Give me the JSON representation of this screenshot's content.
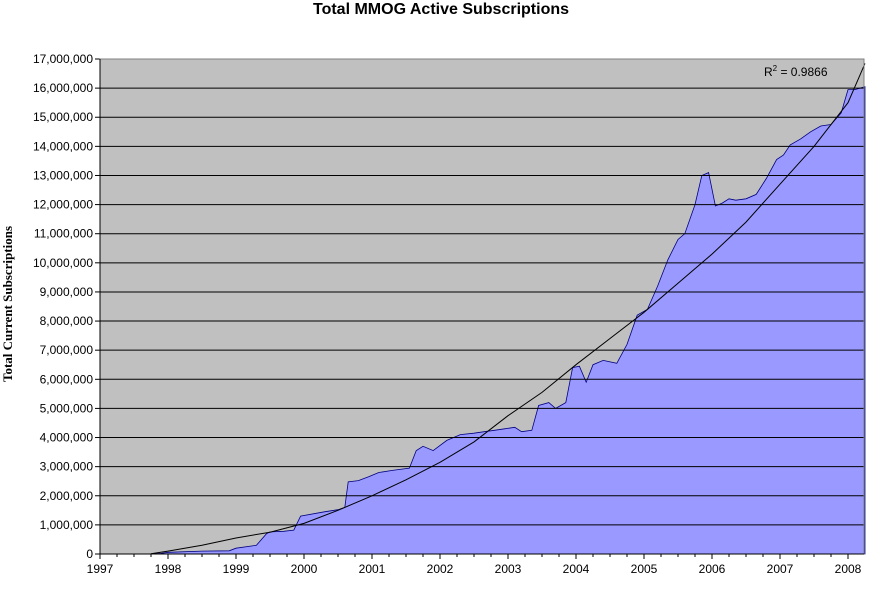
{
  "chart_data": {
    "type": "area",
    "title": "Total MMOG Active Subscriptions",
    "xlabel": "",
    "ylabel": "Total Current Subscriptions",
    "xlim": [
      1997.0,
      2008.25
    ],
    "ylim": [
      0,
      17000000
    ],
    "grid": true,
    "legend": "none",
    "x_tick_labels": [
      "1997",
      "1998",
      "1999",
      "2000",
      "2001",
      "2002",
      "2003",
      "2004",
      "2005",
      "2006",
      "2007",
      "2008"
    ],
    "y_tick_labels": [
      "0",
      "1,000,000",
      "2,000,000",
      "3,000,000",
      "4,000,000",
      "5,000,000",
      "6,000,000",
      "7,000,000",
      "8,000,000",
      "9,000,000",
      "10,000,000",
      "11,000,000",
      "12,000,000",
      "13,000,000",
      "14,000,000",
      "15,000,000",
      "16,000,000",
      "17,000,000"
    ],
    "annotation": {
      "prefix": "R",
      "superscript": "2",
      "suffix": " = 0.9866"
    },
    "series": [
      {
        "type": "area",
        "x": [
          1997.75,
          1997.9,
          1998.0,
          1998.5,
          1998.9,
          1999.0,
          1999.3,
          1999.45,
          1999.5,
          1999.7,
          1999.85,
          1999.95,
          2000.3,
          2000.5,
          2000.6,
          2000.65,
          2000.8,
          2000.95,
          2001.1,
          2001.3,
          2001.55,
          2001.65,
          2001.75,
          2001.9,
          2002.1,
          2002.3,
          2002.5,
          2002.65,
          2002.8,
          2002.95,
          2003.1,
          2003.2,
          2003.35,
          2003.45,
          2003.6,
          2003.7,
          2003.85,
          2003.95,
          2004.05,
          2004.15,
          2004.25,
          2004.4,
          2004.6,
          2004.75,
          2004.9,
          2005.05,
          2005.2,
          2005.35,
          2005.5,
          2005.6,
          2005.75,
          2005.85,
          2005.95,
          2006.05,
          2006.15,
          2006.25,
          2006.35,
          2006.5,
          2006.65,
          2006.8,
          2006.95,
          2007.05,
          2007.15,
          2007.3,
          2007.45,
          2007.6,
          2007.75,
          2007.9,
          2008.0,
          2008.1,
          2008.25
        ],
        "values": [
          0,
          20000,
          60000,
          100000,
          110000,
          200000,
          300000,
          700000,
          760000,
          780000,
          820000,
          1300000,
          1450000,
          1520000,
          1600000,
          2480000,
          2520000,
          2650000,
          2800000,
          2870000,
          2950000,
          3550000,
          3700000,
          3550000,
          3900000,
          4100000,
          4150000,
          4200000,
          4250000,
          4300000,
          4350000,
          4200000,
          4250000,
          5100000,
          5200000,
          5000000,
          5200000,
          6400000,
          6450000,
          5900000,
          6500000,
          6650000,
          6550000,
          7200000,
          8200000,
          8400000,
          9200000,
          10100000,
          10800000,
          11000000,
          12000000,
          13000000,
          13100000,
          11950000,
          12050000,
          12200000,
          12150000,
          12200000,
          12350000,
          12900000,
          13550000,
          13700000,
          14050000,
          14250000,
          14500000,
          14700000,
          14750000,
          15150000,
          15950000,
          15950000,
          16050000
        ]
      },
      {
        "type": "trendline",
        "x": [
          1997.75,
          1998.0,
          1998.5,
          1999.0,
          1999.5,
          2000.0,
          2000.5,
          2001.0,
          2001.5,
          2002.0,
          2002.5,
          2003.0,
          2003.5,
          2004.0,
          2004.5,
          2005.0,
          2005.5,
          2006.0,
          2006.5,
          2007.0,
          2007.5,
          2008.0,
          2008.25
        ],
        "values": [
          10000,
          100000,
          300000,
          550000,
          750000,
          1050000,
          1500000,
          2000000,
          2550000,
          3150000,
          3850000,
          4750000,
          5550000,
          6500000,
          7400000,
          8300000,
          9300000,
          10300000,
          11400000,
          12700000,
          14000000,
          15500000,
          16850000
        ]
      }
    ],
    "colors": {
      "area_fill": "#9999ff",
      "plot_background": "#c0c0c0",
      "gridline": "#000000",
      "trendline": "#000000"
    }
  }
}
